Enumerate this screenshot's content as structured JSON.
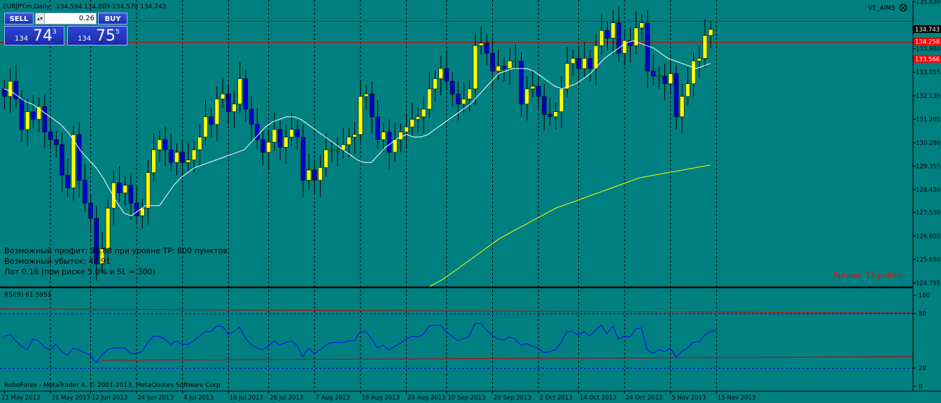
{
  "header": {
    "symbol_title": "EURJPY.m,Daily",
    "ohlc": "134.594 134.809 134.570 134.743",
    "indicator_name": "VE_AIMS"
  },
  "one_click": {
    "sell_label": "SELL",
    "buy_label": "BUY",
    "lot": "0.26",
    "sell_small": "134",
    "sell_big": "74",
    "sell_sup": "3",
    "buy_small": "134",
    "buy_big": "75",
    "buy_sup": "5"
  },
  "info_text": [
    "Возможный профит: 95.83 при уровне TP: 600 пунктов",
    "Возможный убыток: 47.91",
    "Лот 0.16 (при риске 5.0% и SL = 300)"
  ],
  "spread_text": "Spread: 12 points",
  "rsi_label": "RSI(9) 61.5951",
  "copyright": "RoboForex - MetaTrader 4, © 2001-2013, MetaQuotes Software Corp.",
  "colors": {
    "background": "#008080",
    "bull_candle": "#ffff00",
    "bear_candle": "#0000cc",
    "wick": "#000000",
    "fast_ma": "#ffffff",
    "slow_ma": "#ffff00",
    "levels": "#cc0000",
    "rsi_line": "#0000ff",
    "rsi_levels": "#0000cc",
    "grid": "#000000",
    "red_label_bg": "#ff0000",
    "spread_text": "#ff0000"
  },
  "chart_data": [
    {
      "type": "candlestick",
      "title": "EURJPY.m,Daily",
      "ylim": [
        124.6,
        135.9
      ],
      "y_tick_labels": [
        "135.830",
        "133.980",
        "133.055",
        "132.130",
        "131.205",
        "130.280",
        "129.355",
        "128.430",
        "127.530",
        "126.605",
        "125.680",
        "124.755"
      ],
      "price_labels": [
        {
          "value": "134.258",
          "color": "#ff0000",
          "text_color": "#ffffff"
        },
        {
          "value": "134.743",
          "color": "#000000",
          "text_color": "#ffffff"
        },
        {
          "value": "133.566",
          "color": "#ff0000",
          "text_color": "#ffffff"
        }
      ],
      "horizontal_levels": [
        135.08,
        134.26
      ],
      "x_date_labels": [
        "21 May 2013",
        "31 May 2013",
        "12 Jun 2013",
        "24 Jun 2013",
        "4 Jul 2013",
        "16 Jul 2013",
        "26 Jul 2013",
        "7 Aug 2013",
        "19 Aug 2013",
        "29 Aug 2013",
        "10 Sep 2013",
        "20 Sep 2013",
        "2 Oct 2013",
        "14 Oct 2013",
        "24 Oct 2013",
        "5 Nov 2013",
        "15 Nov 2013"
      ],
      "closes": [
        132.1,
        132.7,
        132.0,
        130.8,
        131.5,
        131.2,
        131.7,
        130.7,
        130.4,
        130.2,
        129.0,
        128.5,
        130.6,
        128.8,
        127.9,
        127.3,
        125.5,
        126.1,
        127.7,
        128.7,
        128.3,
        128.6,
        127.9,
        127.4,
        127.7,
        129.1,
        130.0,
        130.4,
        130.0,
        129.5,
        129.9,
        129.5,
        129.6,
        130.0,
        130.5,
        131.3,
        131.0,
        132.0,
        132.2,
        131.5,
        131.8,
        132.8,
        131.6,
        131.0,
        130.4,
        129.9,
        130.3,
        130.8,
        130.1,
        130.5,
        130.8,
        130.5,
        128.8,
        129.2,
        128.8,
        129.3,
        130.0,
        130.0,
        130.0,
        130.2,
        130.5,
        130.6,
        132.1,
        132.2,
        131.3,
        130.4,
        130.7,
        129.9,
        130.4,
        130.7,
        130.9,
        131.2,
        131.3,
        131.6,
        132.4,
        132.8,
        133.2,
        132.7,
        132.2,
        131.8,
        132.0,
        132.4,
        134.1,
        134.2,
        133.8,
        133.1,
        133.3,
        133.2,
        133.5,
        133.5,
        131.8,
        132.4,
        132.5,
        132.1,
        131.4,
        131.3,
        131.5,
        132.4,
        133.4,
        133.6,
        133.2,
        133.6,
        133.2,
        134.1,
        134.7,
        134.4,
        135.0,
        133.8,
        134.3,
        134.1,
        134.8,
        135.0,
        133.1,
        132.9,
        132.9,
        132.6,
        133.0,
        131.3,
        132.1,
        132.6,
        133.5,
        133.6,
        134.5,
        134.74
      ],
      "ma_fast": [
        132.4,
        132.3,
        132.1,
        131.9,
        131.8,
        131.6,
        131.4,
        131.2,
        131.0,
        130.7,
        130.3,
        129.9,
        129.6,
        129.3,
        128.9,
        128.4,
        127.9,
        127.5,
        127.4,
        127.6,
        127.8,
        127.8,
        127.8,
        128.2,
        128.6,
        128.9,
        129.1,
        129.3,
        129.4,
        129.5,
        129.6,
        129.7,
        129.8,
        129.9,
        130.0,
        130.3,
        130.6,
        130.9,
        131.1,
        131.2,
        131.3,
        131.3,
        131.2,
        131.0,
        130.8,
        130.6,
        130.4,
        130.2,
        130.0,
        129.8,
        129.6,
        129.5,
        129.5,
        129.8,
        130.1,
        130.3,
        130.5,
        130.6,
        130.5,
        130.5,
        130.6,
        130.8,
        131.0,
        131.2,
        131.4,
        131.6,
        131.8,
        132.1,
        132.4,
        132.7,
        133.0,
        133.1,
        133.2,
        133.2,
        133.2,
        133.1,
        132.9,
        132.7,
        132.5,
        132.4,
        132.5,
        132.6,
        132.8,
        133.0,
        133.3,
        133.6,
        133.8,
        134.0,
        134.2,
        134.3,
        134.2,
        134.1,
        134.0,
        133.8,
        133.6,
        133.5,
        133.4,
        133.3,
        133.2,
        133.3,
        133.4
      ],
      "ma_slow": [
        124.6,
        124.9,
        125.3,
        125.7,
        126.1,
        126.5,
        126.8,
        127.1,
        127.4,
        127.7,
        127.9,
        128.1,
        128.3,
        128.5,
        128.7,
        128.9,
        129.0,
        129.1,
        129.2,
        129.3,
        129.4
      ],
      "x": [
        "21 May 2013",
        "31 May 2013",
        "12 Jun 2013",
        "24 Jun 2013",
        "4 Jul 2013",
        "16 Jul 2013",
        "26 Jul 2013",
        "7 Aug 2013",
        "19 Aug 2013",
        "29 Aug 2013",
        "10 Sep 2013",
        "20 Sep 2013",
        "2 Oct 2013",
        "14 Oct 2013",
        "24 Oct 2013",
        "5 Nov 2013",
        "15 Nov 2013"
      ]
    },
    {
      "type": "line",
      "title": "RSI(9) 61.5951",
      "ylim": [
        0,
        100
      ],
      "y_tick_labels": [
        "100",
        "80",
        "20",
        "0"
      ],
      "levels": [
        80,
        20
      ],
      "values": [
        55,
        57,
        50,
        44,
        40,
        52,
        50,
        43,
        40,
        46,
        38,
        34,
        42,
        40,
        37,
        34,
        26,
        34,
        40,
        42,
        42,
        42,
        36,
        36,
        38,
        48,
        55,
        55,
        52,
        46,
        50,
        46,
        46,
        50,
        55,
        60,
        60,
        66,
        66,
        57,
        60,
        65,
        53,
        46,
        42,
        40,
        44,
        50,
        45,
        48,
        50,
        45,
        32,
        42,
        36,
        40,
        45,
        48,
        48,
        48,
        50,
        50,
        60,
        60,
        52,
        42,
        45,
        40,
        44,
        47,
        52,
        55,
        54,
        57,
        66,
        67,
        67,
        60,
        55,
        50,
        52,
        55,
        69,
        69,
        62,
        56,
        52,
        51,
        54,
        52,
        45,
        47,
        44,
        42,
        37,
        38,
        40,
        48,
        60,
        60,
        56,
        60,
        55,
        62,
        67,
        58,
        66,
        52,
        55,
        54,
        63,
        64,
        40,
        36,
        40,
        38,
        42,
        32,
        38,
        42,
        48,
        49,
        56,
        60,
        61.6
      ]
    }
  ]
}
